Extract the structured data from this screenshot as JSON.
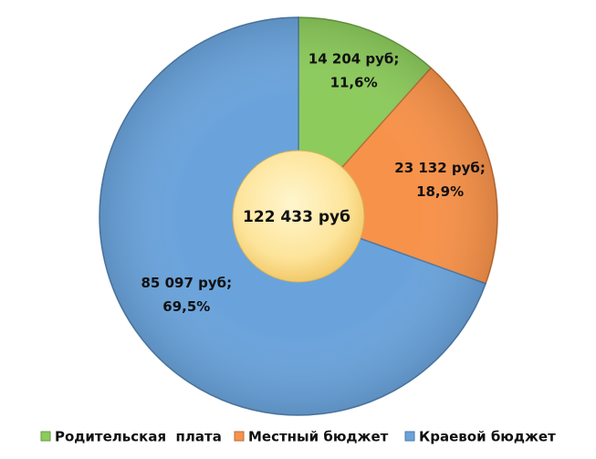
{
  "chart_data": {
    "type": "donut",
    "categories": [
      "Родительская  плата",
      "Местный бюджет",
      "Краевой бюджет"
    ],
    "values": [
      14204,
      23132,
      85097
    ],
    "value_labels": [
      "14 204 руб;",
      "23 132 руб;",
      "85 097 руб;"
    ],
    "percent_labels": [
      "11,6%",
      "18,9%",
      "69,5%"
    ],
    "colors": [
      "#8ccb5c",
      "#f7924a",
      "#6aa3db"
    ],
    "center_label": "122 433 руб"
  }
}
